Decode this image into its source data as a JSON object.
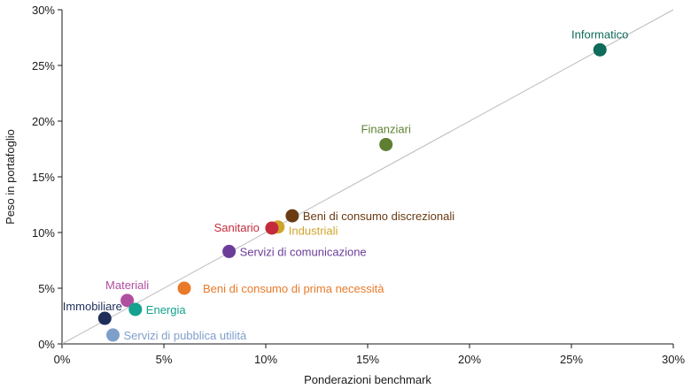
{
  "chart_data": {
    "type": "scatter",
    "xlabel": "Ponderazioni benchmark",
    "ylabel": "Peso in portafoglio",
    "xlim": [
      0,
      30
    ],
    "ylim": [
      0,
      30
    ],
    "xticks": [
      0,
      5,
      10,
      15,
      20,
      25,
      30
    ],
    "yticks": [
      0,
      5,
      10,
      15,
      20,
      25,
      30
    ],
    "tick_format": "{v}%",
    "grid": false,
    "reference_line": {
      "from": [
        0,
        0
      ],
      "to": [
        30,
        30
      ],
      "color": "#bdbdbd"
    },
    "points": [
      {
        "name": "Informatico",
        "x": 26.4,
        "y": 26.4,
        "color": "#0f6b5a",
        "label_pos": "above"
      },
      {
        "name": "Finanziari",
        "x": 15.9,
        "y": 17.9,
        "color": "#5e7f31",
        "label_pos": "above"
      },
      {
        "name": "Beni di consumo discrezionali",
        "x": 11.3,
        "y": 11.5,
        "color": "#6a3a12",
        "label_pos": "right"
      },
      {
        "name": "Industriali",
        "x": 10.6,
        "y": 10.5,
        "color": "#d0a42a",
        "label_pos": "right-below"
      },
      {
        "name": "Sanitario",
        "x": 10.3,
        "y": 10.4,
        "color": "#c42b3c",
        "label_pos": "left"
      },
      {
        "name": "Servizi di comunicazione",
        "x": 8.2,
        "y": 8.3,
        "color": "#6b3d99",
        "label_pos": "right"
      },
      {
        "name": "Beni di consumo di prima necessità",
        "x": 6.0,
        "y": 5.0,
        "color": "#e87a2a",
        "label_pos": "right-far"
      },
      {
        "name": "Materiali",
        "x": 3.2,
        "y": 3.9,
        "color": "#b04fa0",
        "label_pos": "above"
      },
      {
        "name": "Energia",
        "x": 3.6,
        "y": 3.1,
        "color": "#12a28e",
        "label_pos": "right"
      },
      {
        "name": "Immobiliare",
        "x": 2.1,
        "y": 2.3,
        "color": "#1e2d5a",
        "label_pos": "above-left"
      },
      {
        "name": "Servizi di pubblica utilità",
        "x": 2.5,
        "y": 0.8,
        "color": "#7f9fcb",
        "label_pos": "right"
      }
    ]
  }
}
